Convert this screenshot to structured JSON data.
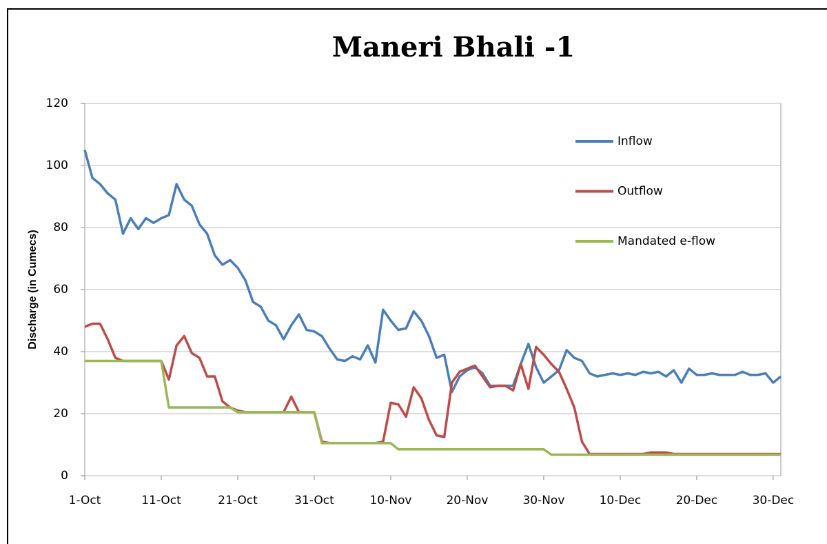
{
  "chart_data": {
    "type": "line",
    "title": "Maneri Bhali -1",
    "y_label": "Discharge (in Cumecs)",
    "categories": [
      "1-Oct",
      null,
      null,
      null,
      null,
      null,
      null,
      null,
      null,
      null,
      "11-Oct",
      null,
      null,
      null,
      null,
      null,
      null,
      null,
      null,
      null,
      "21-Oct",
      null,
      null,
      null,
      null,
      null,
      null,
      null,
      null,
      null,
      "31-Oct",
      null,
      null,
      null,
      null,
      null,
      null,
      null,
      null,
      null,
      "10-Nov",
      null,
      null,
      null,
      null,
      null,
      null,
      null,
      null,
      null,
      "20-Nov",
      null,
      null,
      null,
      null,
      null,
      null,
      null,
      null,
      null,
      "30-Nov",
      null,
      null,
      null,
      null,
      null,
      null,
      null,
      null,
      null,
      "10-Dec",
      null,
      null,
      null,
      null,
      null,
      null,
      null,
      null,
      null,
      "20-Dec",
      null,
      null,
      null,
      null,
      null,
      null,
      null,
      null,
      null,
      "30-Dec",
      null
    ],
    "series": [
      {
        "name": "Inflow",
        "color": "#4a7ebb",
        "values": [
          105,
          96,
          94,
          91,
          89,
          78,
          83,
          79.5,
          83,
          81.5,
          83,
          84,
          94,
          89,
          87,
          81,
          78,
          71,
          68,
          69.5,
          67,
          63,
          56,
          54.5,
          50,
          48.5,
          44,
          48.5,
          52,
          47,
          46.5,
          45,
          41,
          37.5,
          37,
          38.5,
          37.5,
          42,
          36.5,
          53.5,
          50,
          47,
          47.5,
          53,
          50,
          45,
          38,
          39,
          27,
          32,
          34,
          35,
          33,
          29,
          29,
          29,
          29,
          36,
          42.5,
          35,
          30,
          32,
          34,
          40.5,
          38,
          37,
          33,
          32,
          32.5,
          33,
          32.5,
          33,
          32.5,
          33.5,
          33,
          33.5,
          32,
          34,
          30,
          34.5,
          32.5,
          32.5,
          33,
          32.5,
          32.5,
          32.5,
          33.5,
          32.5,
          32.5,
          33,
          30,
          32
        ]
      },
      {
        "name": "Outflow",
        "color": "#be4b48",
        "values": [
          48,
          49,
          49,
          44,
          38,
          37,
          37,
          37,
          37,
          37,
          37,
          31,
          42,
          45,
          39.5,
          38,
          32,
          32,
          24,
          22,
          21,
          20.5,
          20.5,
          20.5,
          20.5,
          20.5,
          20.5,
          25.5,
          20.5,
          20.5,
          20.5,
          11,
          10.5,
          10.5,
          10.5,
          10.5,
          10.5,
          10.5,
          10.5,
          11,
          23.5,
          23,
          19,
          28.5,
          25,
          18,
          13,
          12.5,
          30,
          33.5,
          34.5,
          35.5,
          32,
          28.5,
          29,
          29,
          27.5,
          36,
          28,
          41.5,
          39,
          36,
          33.5,
          28,
          22,
          11,
          7,
          7,
          7,
          7,
          7,
          7,
          7,
          7,
          7.5,
          7.5,
          7.5,
          7,
          7,
          7,
          7,
          7,
          7,
          7,
          7,
          7,
          7,
          7,
          7,
          7,
          7,
          7
        ]
      },
      {
        "name": "Mandated e-flow",
        "color": "#98b954",
        "values": [
          37,
          37,
          37,
          37,
          37,
          37,
          37,
          37,
          37,
          37,
          37,
          22,
          22,
          22,
          22,
          22,
          22,
          22,
          22,
          22,
          20.5,
          20.5,
          20.5,
          20.5,
          20.5,
          20.5,
          20.5,
          20.5,
          20.5,
          20.5,
          20.5,
          10.5,
          10.5,
          10.5,
          10.5,
          10.5,
          10.5,
          10.5,
          10.5,
          10.5,
          10.5,
          8.5,
          8.5,
          8.5,
          8.5,
          8.5,
          8.5,
          8.5,
          8.5,
          8.5,
          8.5,
          8.5,
          8.5,
          8.5,
          8.5,
          8.5,
          8.5,
          8.5,
          8.5,
          8.5,
          8.5,
          6.8,
          6.8,
          6.8,
          6.8,
          6.8,
          6.8,
          6.8,
          6.8,
          6.8,
          6.8,
          6.8,
          6.8,
          6.8,
          6.8,
          6.8,
          6.8,
          6.8,
          6.8,
          6.8,
          6.8,
          6.8,
          6.8,
          6.8,
          6.8,
          6.8,
          6.8,
          6.8,
          6.8,
          6.8,
          6.8,
          6.8
        ]
      }
    ],
    "ylim": [
      0,
      120
    ],
    "yticks": [
      0,
      20,
      40,
      60,
      80,
      100,
      120
    ],
    "grid": true,
    "legend": "upper right"
  }
}
